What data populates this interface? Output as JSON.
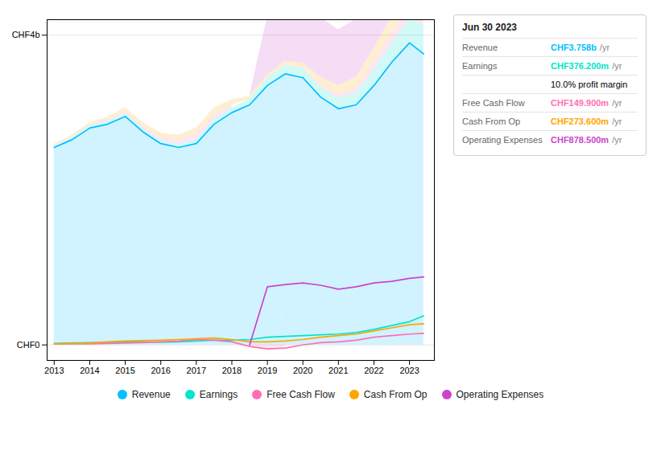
{
  "chart_data": {
    "type": "area",
    "x": [
      2013,
      2013.5,
      2014,
      2014.5,
      2015,
      2015.5,
      2016,
      2016.5,
      2017,
      2017.5,
      2018,
      2018.5,
      2019,
      2019.5,
      2020,
      2020.5,
      2021,
      2021.5,
      2022,
      2022.5,
      2023,
      2023.4
    ],
    "xlim": [
      2012.8,
      2023.7
    ],
    "xticks": [
      2013,
      2014,
      2015,
      2016,
      2017,
      2018,
      2019,
      2020,
      2021,
      2022,
      2023
    ],
    "ylim": [
      -0.2,
      4.2
    ],
    "yticks": [
      {
        "value": 0,
        "label": "CHF0"
      },
      {
        "value": 4,
        "label": "CHF4b"
      }
    ],
    "grid": true,
    "legend": "bottom",
    "series": [
      {
        "name": "Revenue",
        "color": "#00bfff",
        "values": [
          2.55,
          2.65,
          2.8,
          2.85,
          2.95,
          2.75,
          2.6,
          2.55,
          2.6,
          2.85,
          3.0,
          3.1,
          3.35,
          3.5,
          3.45,
          3.2,
          3.05,
          3.1,
          3.35,
          3.65,
          3.9,
          3.758
        ]
      },
      {
        "name": "Earnings",
        "color": "#00e5cc",
        "values": [
          0.02,
          0.025,
          0.03,
          0.03,
          0.04,
          0.04,
          0.035,
          0.04,
          0.05,
          0.06,
          0.06,
          0.07,
          0.1,
          0.11,
          0.12,
          0.13,
          0.14,
          0.16,
          0.2,
          0.25,
          0.3,
          0.3762
        ]
      },
      {
        "name": "Free Cash Flow",
        "color": "#ff6eb4",
        "values": [
          0.01,
          0.015,
          0.015,
          0.02,
          0.025,
          0.03,
          0.04,
          0.05,
          0.07,
          0.06,
          0.04,
          -0.02,
          -0.05,
          -0.04,
          0.0,
          0.03,
          0.04,
          0.06,
          0.1,
          0.12,
          0.14,
          0.1499
        ]
      },
      {
        "name": "Cash From Op",
        "color": "#ffa500",
        "values": [
          0.015,
          0.02,
          0.025,
          0.04,
          0.05,
          0.055,
          0.06,
          0.07,
          0.08,
          0.09,
          0.07,
          0.04,
          0.04,
          0.05,
          0.07,
          0.1,
          0.12,
          0.14,
          0.18,
          0.22,
          0.26,
          0.2736
        ]
      },
      {
        "name": "Operating Expenses",
        "color": "#cc44cc",
        "values": [
          null,
          null,
          null,
          null,
          null,
          null,
          null,
          null,
          null,
          null,
          null,
          0.0,
          0.75,
          0.78,
          0.8,
          0.77,
          0.72,
          0.75,
          0.8,
          0.82,
          0.86,
          0.8785
        ]
      }
    ],
    "annotations": [
      {
        "text": "Jun 30 2023"
      },
      {
        "label": "Revenue",
        "text": "CHF3.758b",
        "unit": "/yr",
        "color": "#00bfff"
      },
      {
        "label": "Earnings",
        "text": "CHF376.200m",
        "unit": "/yr",
        "color": "#00e5cc"
      },
      {
        "text": "10.0% profit margin"
      },
      {
        "label": "Free Cash Flow",
        "text": "CHF149.900m",
        "unit": "/yr",
        "color": "#ff6eb4"
      },
      {
        "label": "Cash From Op",
        "text": "CHF273.600m",
        "unit": "/yr",
        "color": "#ffa500"
      },
      {
        "label": "Operating Expenses",
        "text": "CHF878.500m",
        "unit": "/yr",
        "color": "#cc44cc"
      }
    ]
  }
}
